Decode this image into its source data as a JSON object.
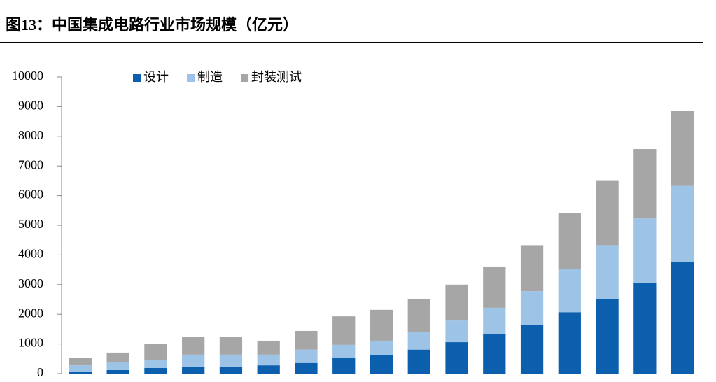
{
  "chart_data": {
    "type": "stacked_bar",
    "title": "图13：中国集成电路行业市场规模（亿元）",
    "categories": [
      null,
      null,
      null,
      null,
      null,
      null,
      null,
      null,
      null,
      null,
      null,
      null,
      null,
      null,
      null,
      null,
      null
    ],
    "series": [
      {
        "name": "设计",
        "color": "#0b5fad",
        "values": [
          70,
          120,
          190,
          240,
          240,
          280,
          360,
          530,
          620,
          810,
          1060,
          1340,
          1650,
          2070,
          2520,
          3070,
          3770
        ]
      },
      {
        "name": "制造",
        "color": "#9dc3e6",
        "values": [
          210,
          260,
          280,
          400,
          400,
          360,
          450,
          440,
          490,
          590,
          730,
          880,
          1130,
          1460,
          1810,
          2160,
          2560
        ]
      },
      {
        "name": "封装测试",
        "color": "#a6a6a6",
        "values": [
          260,
          330,
          530,
          610,
          610,
          470,
          630,
          960,
          1040,
          1100,
          1210,
          1390,
          1550,
          1880,
          2190,
          2340,
          2520
        ]
      }
    ],
    "ylim": [
      0,
      10000
    ],
    "yticks": [
      0,
      1000,
      2000,
      3000,
      4000,
      5000,
      6000,
      7000,
      8000,
      9000,
      10000
    ],
    "legend": "top"
  }
}
